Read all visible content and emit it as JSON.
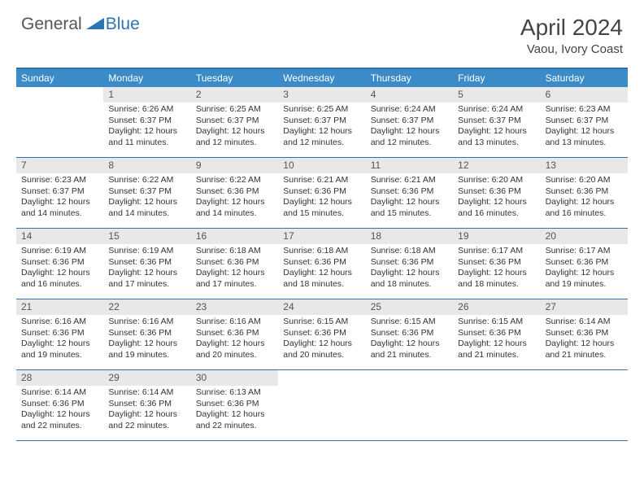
{
  "brand": {
    "general": "General",
    "blue": "Blue"
  },
  "title": "April 2024",
  "location": "Vaou, Ivory Coast",
  "colors": {
    "header_bar": "#3b8bc9",
    "border": "#2e74b5",
    "daynum_bg": "#e8e8e8",
    "text": "#333333"
  },
  "calendar": {
    "type": "table",
    "weekdays": [
      "Sunday",
      "Monday",
      "Tuesday",
      "Wednesday",
      "Thursday",
      "Friday",
      "Saturday"
    ],
    "weeks": [
      [
        {
          "n": "",
          "sunrise": "",
          "sunset": "",
          "daylight": ""
        },
        {
          "n": "1",
          "sunrise": "Sunrise: 6:26 AM",
          "sunset": "Sunset: 6:37 PM",
          "daylight": "Daylight: 12 hours and 11 minutes."
        },
        {
          "n": "2",
          "sunrise": "Sunrise: 6:25 AM",
          "sunset": "Sunset: 6:37 PM",
          "daylight": "Daylight: 12 hours and 12 minutes."
        },
        {
          "n": "3",
          "sunrise": "Sunrise: 6:25 AM",
          "sunset": "Sunset: 6:37 PM",
          "daylight": "Daylight: 12 hours and 12 minutes."
        },
        {
          "n": "4",
          "sunrise": "Sunrise: 6:24 AM",
          "sunset": "Sunset: 6:37 PM",
          "daylight": "Daylight: 12 hours and 12 minutes."
        },
        {
          "n": "5",
          "sunrise": "Sunrise: 6:24 AM",
          "sunset": "Sunset: 6:37 PM",
          "daylight": "Daylight: 12 hours and 13 minutes."
        },
        {
          "n": "6",
          "sunrise": "Sunrise: 6:23 AM",
          "sunset": "Sunset: 6:37 PM",
          "daylight": "Daylight: 12 hours and 13 minutes."
        }
      ],
      [
        {
          "n": "7",
          "sunrise": "Sunrise: 6:23 AM",
          "sunset": "Sunset: 6:37 PM",
          "daylight": "Daylight: 12 hours and 14 minutes."
        },
        {
          "n": "8",
          "sunrise": "Sunrise: 6:22 AM",
          "sunset": "Sunset: 6:37 PM",
          "daylight": "Daylight: 12 hours and 14 minutes."
        },
        {
          "n": "9",
          "sunrise": "Sunrise: 6:22 AM",
          "sunset": "Sunset: 6:36 PM",
          "daylight": "Daylight: 12 hours and 14 minutes."
        },
        {
          "n": "10",
          "sunrise": "Sunrise: 6:21 AM",
          "sunset": "Sunset: 6:36 PM",
          "daylight": "Daylight: 12 hours and 15 minutes."
        },
        {
          "n": "11",
          "sunrise": "Sunrise: 6:21 AM",
          "sunset": "Sunset: 6:36 PM",
          "daylight": "Daylight: 12 hours and 15 minutes."
        },
        {
          "n": "12",
          "sunrise": "Sunrise: 6:20 AM",
          "sunset": "Sunset: 6:36 PM",
          "daylight": "Daylight: 12 hours and 16 minutes."
        },
        {
          "n": "13",
          "sunrise": "Sunrise: 6:20 AM",
          "sunset": "Sunset: 6:36 PM",
          "daylight": "Daylight: 12 hours and 16 minutes."
        }
      ],
      [
        {
          "n": "14",
          "sunrise": "Sunrise: 6:19 AM",
          "sunset": "Sunset: 6:36 PM",
          "daylight": "Daylight: 12 hours and 16 minutes."
        },
        {
          "n": "15",
          "sunrise": "Sunrise: 6:19 AM",
          "sunset": "Sunset: 6:36 PM",
          "daylight": "Daylight: 12 hours and 17 minutes."
        },
        {
          "n": "16",
          "sunrise": "Sunrise: 6:18 AM",
          "sunset": "Sunset: 6:36 PM",
          "daylight": "Daylight: 12 hours and 17 minutes."
        },
        {
          "n": "17",
          "sunrise": "Sunrise: 6:18 AM",
          "sunset": "Sunset: 6:36 PM",
          "daylight": "Daylight: 12 hours and 18 minutes."
        },
        {
          "n": "18",
          "sunrise": "Sunrise: 6:18 AM",
          "sunset": "Sunset: 6:36 PM",
          "daylight": "Daylight: 12 hours and 18 minutes."
        },
        {
          "n": "19",
          "sunrise": "Sunrise: 6:17 AM",
          "sunset": "Sunset: 6:36 PM",
          "daylight": "Daylight: 12 hours and 18 minutes."
        },
        {
          "n": "20",
          "sunrise": "Sunrise: 6:17 AM",
          "sunset": "Sunset: 6:36 PM",
          "daylight": "Daylight: 12 hours and 19 minutes."
        }
      ],
      [
        {
          "n": "21",
          "sunrise": "Sunrise: 6:16 AM",
          "sunset": "Sunset: 6:36 PM",
          "daylight": "Daylight: 12 hours and 19 minutes."
        },
        {
          "n": "22",
          "sunrise": "Sunrise: 6:16 AM",
          "sunset": "Sunset: 6:36 PM",
          "daylight": "Daylight: 12 hours and 19 minutes."
        },
        {
          "n": "23",
          "sunrise": "Sunrise: 6:16 AM",
          "sunset": "Sunset: 6:36 PM",
          "daylight": "Daylight: 12 hours and 20 minutes."
        },
        {
          "n": "24",
          "sunrise": "Sunrise: 6:15 AM",
          "sunset": "Sunset: 6:36 PM",
          "daylight": "Daylight: 12 hours and 20 minutes."
        },
        {
          "n": "25",
          "sunrise": "Sunrise: 6:15 AM",
          "sunset": "Sunset: 6:36 PM",
          "daylight": "Daylight: 12 hours and 21 minutes."
        },
        {
          "n": "26",
          "sunrise": "Sunrise: 6:15 AM",
          "sunset": "Sunset: 6:36 PM",
          "daylight": "Daylight: 12 hours and 21 minutes."
        },
        {
          "n": "27",
          "sunrise": "Sunrise: 6:14 AM",
          "sunset": "Sunset: 6:36 PM",
          "daylight": "Daylight: 12 hours and 21 minutes."
        }
      ],
      [
        {
          "n": "28",
          "sunrise": "Sunrise: 6:14 AM",
          "sunset": "Sunset: 6:36 PM",
          "daylight": "Daylight: 12 hours and 22 minutes."
        },
        {
          "n": "29",
          "sunrise": "Sunrise: 6:14 AM",
          "sunset": "Sunset: 6:36 PM",
          "daylight": "Daylight: 12 hours and 22 minutes."
        },
        {
          "n": "30",
          "sunrise": "Sunrise: 6:13 AM",
          "sunset": "Sunset: 6:36 PM",
          "daylight": "Daylight: 12 hours and 22 minutes."
        },
        {
          "n": "",
          "sunrise": "",
          "sunset": "",
          "daylight": ""
        },
        {
          "n": "",
          "sunrise": "",
          "sunset": "",
          "daylight": ""
        },
        {
          "n": "",
          "sunrise": "",
          "sunset": "",
          "daylight": ""
        },
        {
          "n": "",
          "sunrise": "",
          "sunset": "",
          "daylight": ""
        }
      ]
    ]
  }
}
